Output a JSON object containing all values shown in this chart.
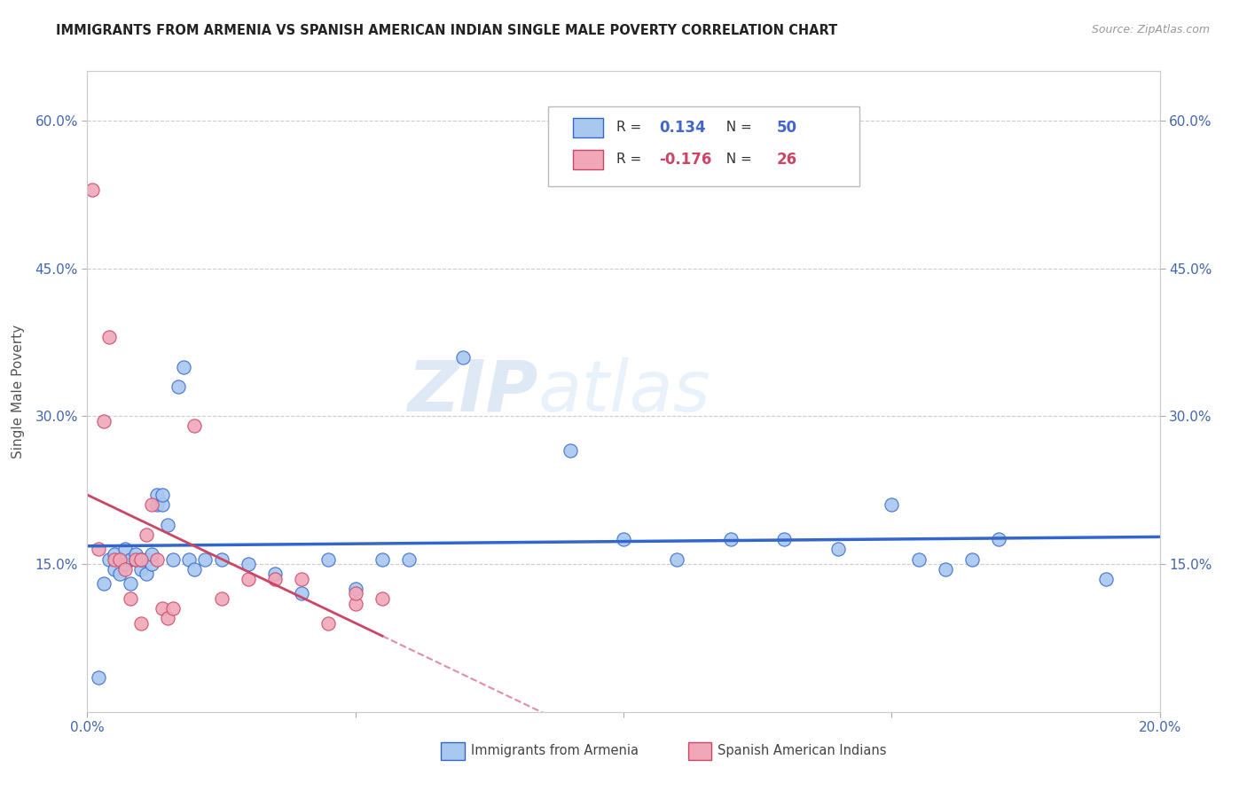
{
  "title": "IMMIGRANTS FROM ARMENIA VS SPANISH AMERICAN INDIAN SINGLE MALE POVERTY CORRELATION CHART",
  "source": "Source: ZipAtlas.com",
  "ylabel": "Single Male Poverty",
  "x_min": 0.0,
  "x_max": 0.2,
  "y_min": 0.0,
  "y_max": 0.65,
  "x_ticks": [
    0.0,
    0.05,
    0.1,
    0.15,
    0.2
  ],
  "x_tick_labels": [
    "0.0%",
    "",
    "",
    "",
    "20.0%"
  ],
  "y_ticks": [
    0.15,
    0.3,
    0.45,
    0.6
  ],
  "y_tick_labels": [
    "15.0%",
    "30.0%",
    "45.0%",
    "60.0%"
  ],
  "legend_r_blue": "0.134",
  "legend_n_blue": "50",
  "legend_r_pink": "-0.176",
  "legend_n_pink": "26",
  "legend_label_blue": "Immigrants from Armenia",
  "legend_label_pink": "Spanish American Indians",
  "blue_scatter_x": [
    0.002,
    0.003,
    0.004,
    0.005,
    0.005,
    0.006,
    0.007,
    0.007,
    0.008,
    0.008,
    0.009,
    0.009,
    0.01,
    0.01,
    0.011,
    0.011,
    0.012,
    0.012,
    0.013,
    0.013,
    0.014,
    0.014,
    0.015,
    0.016,
    0.017,
    0.018,
    0.019,
    0.02,
    0.022,
    0.025,
    0.03,
    0.035,
    0.04,
    0.045,
    0.05,
    0.055,
    0.06,
    0.07,
    0.09,
    0.1,
    0.11,
    0.12,
    0.13,
    0.14,
    0.15,
    0.155,
    0.16,
    0.165,
    0.17,
    0.19
  ],
  "blue_scatter_y": [
    0.035,
    0.13,
    0.155,
    0.145,
    0.16,
    0.14,
    0.15,
    0.165,
    0.13,
    0.155,
    0.155,
    0.16,
    0.145,
    0.155,
    0.155,
    0.14,
    0.15,
    0.16,
    0.21,
    0.22,
    0.21,
    0.22,
    0.19,
    0.155,
    0.33,
    0.35,
    0.155,
    0.145,
    0.155,
    0.155,
    0.15,
    0.14,
    0.12,
    0.155,
    0.125,
    0.155,
    0.155,
    0.36,
    0.265,
    0.175,
    0.155,
    0.175,
    0.175,
    0.165,
    0.21,
    0.155,
    0.145,
    0.155,
    0.175,
    0.135
  ],
  "pink_scatter_x": [
    0.001,
    0.002,
    0.003,
    0.004,
    0.005,
    0.006,
    0.007,
    0.008,
    0.009,
    0.01,
    0.01,
    0.011,
    0.012,
    0.013,
    0.014,
    0.015,
    0.016,
    0.02,
    0.025,
    0.03,
    0.035,
    0.04,
    0.045,
    0.05,
    0.05,
    0.055
  ],
  "pink_scatter_y": [
    0.53,
    0.165,
    0.295,
    0.38,
    0.155,
    0.155,
    0.145,
    0.115,
    0.155,
    0.09,
    0.155,
    0.18,
    0.21,
    0.155,
    0.105,
    0.095,
    0.105,
    0.29,
    0.115,
    0.135,
    0.135,
    0.135,
    0.09,
    0.11,
    0.12,
    0.115
  ],
  "blue_color": "#a8c8f0",
  "pink_color": "#f0a8b8",
  "blue_line_color": "#3366cc",
  "pink_line_color": "#cc4466",
  "watermark_zip": "ZIP",
  "watermark_atlas": "atlas",
  "background_color": "#ffffff",
  "grid_color": "#cccccc"
}
